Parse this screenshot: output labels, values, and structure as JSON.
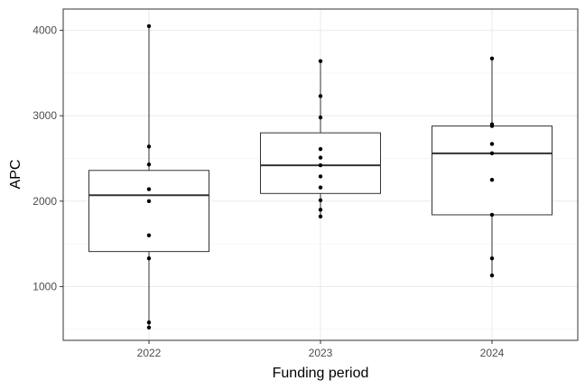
{
  "chart_data": {
    "type": "boxplot",
    "xlabel": "Funding period",
    "ylabel": "APC",
    "categories": [
      "2022",
      "2023",
      "2024"
    ],
    "ylim": [
      370,
      4250
    ],
    "yticks": [
      1000,
      2000,
      3000,
      4000
    ],
    "grid": true,
    "boxes": [
      {
        "category": "2022",
        "q1": 1410,
        "median": 2070,
        "q3": 2360,
        "whisker_low": 520,
        "whisker_high": 4050,
        "points": [
          4050,
          2640,
          2430,
          2140,
          2000,
          1600,
          1330,
          580,
          520
        ]
      },
      {
        "category": "2023",
        "q1": 2090,
        "median": 2420,
        "q3": 2800,
        "whisker_low": 1820,
        "whisker_high": 3640,
        "points": [
          3640,
          3230,
          2980,
          2610,
          2510,
          2420,
          2290,
          2160,
          2010,
          1900,
          1820
        ]
      },
      {
        "category": "2024",
        "q1": 1840,
        "median": 2560,
        "q3": 2880,
        "whisker_low": 1130,
        "whisker_high": 3670,
        "points": [
          3670,
          2900,
          2880,
          2670,
          2560,
          2250,
          1840,
          1330,
          1130
        ]
      }
    ]
  }
}
